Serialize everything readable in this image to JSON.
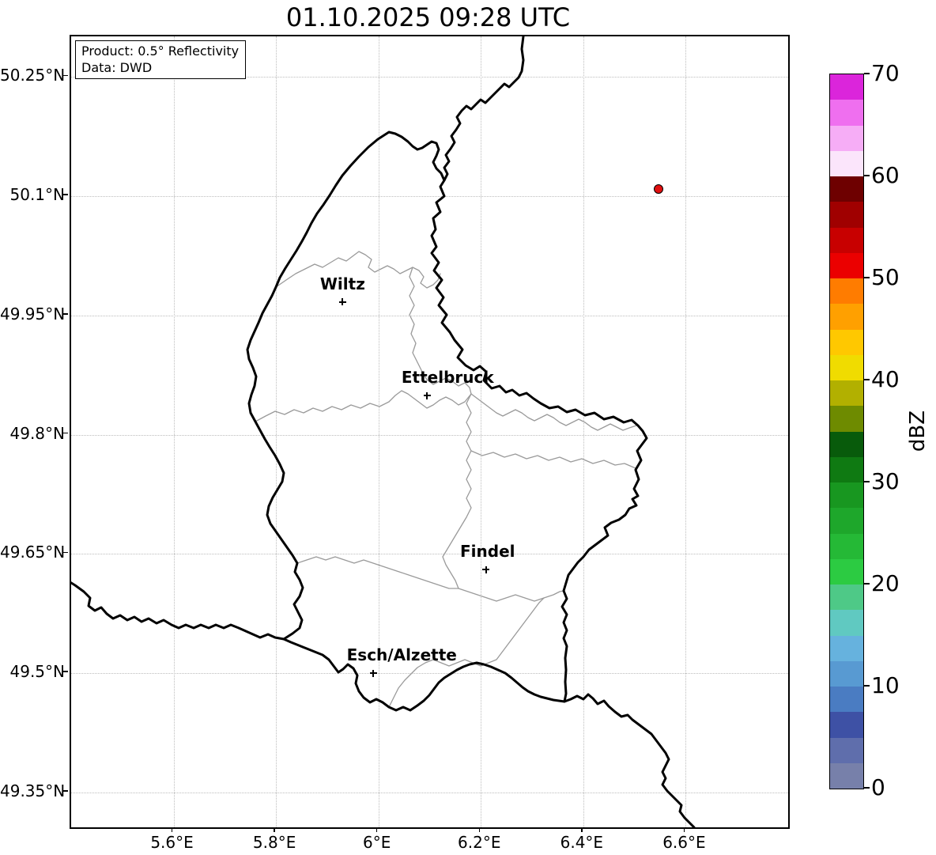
{
  "figure": {
    "title": "01.10.2025 09:28 UTC"
  },
  "info_box": {
    "product": "Product: 0.5° Reflectivity",
    "data_source": "Data: DWD"
  },
  "map": {
    "lon_min": 5.4,
    "lon_max": 6.8,
    "lat_min": 49.306,
    "lat_max": 50.301,
    "lon_ticks": [
      {
        "v": 5.6,
        "label": "5.6°E"
      },
      {
        "v": 5.8,
        "label": "5.8°E"
      },
      {
        "v": 6.0,
        "label": "6°E"
      },
      {
        "v": 6.2,
        "label": "6.2°E"
      },
      {
        "v": 6.4,
        "label": "6.4°E"
      },
      {
        "v": 6.6,
        "label": "6.6°E"
      }
    ],
    "lat_ticks": [
      {
        "v": 50.25,
        "label": "50.25°N"
      },
      {
        "v": 50.1,
        "label": "50.1°N"
      },
      {
        "v": 49.95,
        "label": "49.95°N"
      },
      {
        "v": 49.8,
        "label": "49.8°N"
      },
      {
        "v": 49.65,
        "label": "49.65°N"
      },
      {
        "v": 49.5,
        "label": "49.5°N"
      },
      {
        "v": 49.35,
        "label": "49.35°N"
      }
    ],
    "cities": [
      {
        "name": "Wiltz",
        "lon": 5.93,
        "lat": 49.967,
        "label_dx": 0
      },
      {
        "name": "Ettelbruck",
        "lon": 6.095,
        "lat": 49.849,
        "label_dx": 26
      },
      {
        "name": "Findel",
        "lon": 6.21,
        "lat": 49.63,
        "label_dx": 2
      },
      {
        "name": "Esch/Alzette",
        "lon": 5.99,
        "lat": 49.5,
        "label_dx": 36
      }
    ],
    "radar_marker": {
      "lon": 6.548,
      "lat": 50.108,
      "fill": "#e01010",
      "edge": "#000000"
    }
  },
  "colorbar": {
    "label": "dBZ",
    "min": 0,
    "max": 70,
    "step": 2.5,
    "ticks": [
      {
        "v": 0,
        "label": "0"
      },
      {
        "v": 10,
        "label": "10"
      },
      {
        "v": 20,
        "label": "20"
      },
      {
        "v": 30,
        "label": "30"
      },
      {
        "v": 40,
        "label": "40"
      },
      {
        "v": 50,
        "label": "50"
      },
      {
        "v": 60,
        "label": "60"
      },
      {
        "v": 70,
        "label": "70"
      }
    ],
    "colors_low_to_high": [
      "#7780AA",
      "#5F6EAC",
      "#3E51A5",
      "#4A7CC2",
      "#589AD2",
      "#66B2DE",
      "#60C9C1",
      "#4EC987",
      "#2CCB42",
      "#25B936",
      "#1EA72B",
      "#189720",
      "#0F7A12",
      "#085B0B",
      "#6E8B00",
      "#B2B000",
      "#F0DC00",
      "#FFC800",
      "#FFA000",
      "#FF7C00",
      "#EB0000",
      "#C80000",
      "#A00000",
      "#6E0000",
      "#FBE5FB",
      "#F6ADF6",
      "#EF6FEF",
      "#DB25DB"
    ]
  },
  "style": {
    "border_color": "#000000",
    "canton_color": "#9a9a9a",
    "grid_color": "#bdbdbd",
    "background": "#ffffff"
  }
}
